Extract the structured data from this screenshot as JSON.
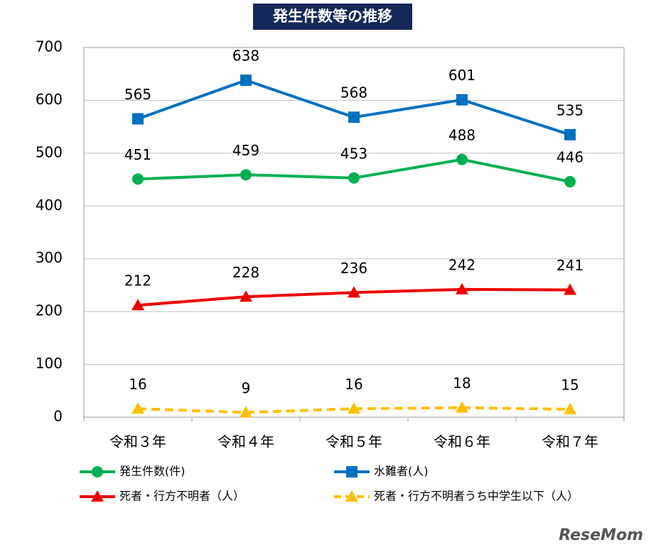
{
  "chart_data": {
    "type": "line",
    "title": "発生件数等の推移",
    "categories": [
      "令和３年",
      "令和４年",
      "令和５年",
      "令和６年",
      "令和７年"
    ],
    "series": [
      {
        "name": "発生件数(件)",
        "color": "#00b050",
        "marker": "circle",
        "dash": false,
        "values": [
          451,
          459,
          453,
          488,
          446
        ]
      },
      {
        "name": "水難者(人)",
        "color": "#0070c0",
        "marker": "square",
        "dash": false,
        "values": [
          565,
          638,
          568,
          601,
          535
        ]
      },
      {
        "name": "死者・行方不明者（人）",
        "color": "#ee0000",
        "marker": "triangle",
        "dash": false,
        "values": [
          212,
          228,
          236,
          242,
          241
        ]
      },
      {
        "name": "死者・行方不明者うち中学生以下（人）",
        "color": "#ffc000",
        "marker": "triangle",
        "dash": true,
        "values": [
          16,
          9,
          16,
          18,
          15
        ]
      }
    ],
    "ylim": [
      0,
      700
    ],
    "yticks": [
      0,
      100,
      200,
      300,
      400,
      500,
      600,
      700
    ],
    "grid": true,
    "watermark": "ReseMom"
  }
}
